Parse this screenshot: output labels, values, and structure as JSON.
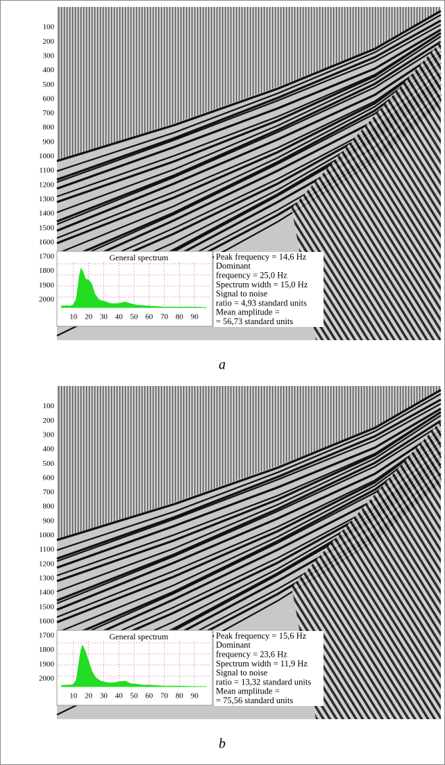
{
  "chart_data": [
    {
      "type": "area",
      "title": "General spectrum",
      "x": [
        2,
        5,
        8,
        10,
        12,
        14,
        15,
        16,
        18,
        20,
        22,
        24,
        26,
        28,
        30,
        33,
        36,
        40,
        44,
        46,
        48,
        52,
        56,
        60,
        65,
        70,
        80,
        90,
        98
      ],
      "values": [
        3,
        4,
        3,
        6,
        20,
        70,
        85,
        80,
        62,
        60,
        52,
        30,
        20,
        15,
        14,
        10,
        8,
        9,
        12,
        10,
        8,
        5,
        4,
        3,
        2,
        1,
        1,
        1,
        0
      ],
      "color": "#22dd22",
      "xlim": [
        0,
        100
      ],
      "xticks": [
        10,
        20,
        30,
        40,
        50,
        60,
        70,
        80,
        90
      ],
      "ylim": [
        0,
        100
      ],
      "grid": true,
      "section_ylim": [
        0,
        2000
      ],
      "section_yticks": [
        100,
        200,
        300,
        400,
        500,
        600,
        700,
        800,
        900,
        1000,
        1100,
        1200,
        1300,
        1400,
        1500,
        1600,
        1700,
        1800,
        1900,
        2000
      ],
      "annotations": [
        "Peak frequency = 14,6 Hz",
        "Dominant",
        "frequency = 25,0 Hz",
        "Spectrum width = 15,0 Hz",
        "Signal to noise",
        "ratio = 4,93 standard units",
        "Mean amplitude =",
        "= 56,73 standard units"
      ],
      "caption": "a"
    },
    {
      "type": "area",
      "title": "General spectrum",
      "x": [
        2,
        5,
        8,
        10,
        12,
        14,
        15,
        16,
        18,
        20,
        22,
        24,
        26,
        28,
        30,
        33,
        36,
        40,
        44,
        46,
        48,
        52,
        56,
        60,
        65,
        70,
        80,
        90,
        98
      ],
      "values": [
        2,
        3,
        3,
        5,
        15,
        60,
        80,
        90,
        75,
        55,
        35,
        22,
        16,
        12,
        10,
        8,
        8,
        10,
        12,
        9,
        6,
        5,
        3,
        3,
        2,
        1,
        1,
        0,
        0
      ],
      "color": "#22dd22",
      "xlim": [
        0,
        100
      ],
      "xticks": [
        10,
        20,
        30,
        40,
        50,
        60,
        70,
        80,
        90
      ],
      "ylim": [
        0,
        100
      ],
      "grid": true,
      "section_ylim": [
        0,
        2000
      ],
      "section_yticks": [
        100,
        200,
        300,
        400,
        500,
        600,
        700,
        800,
        900,
        1000,
        1100,
        1200,
        1300,
        1400,
        1500,
        1600,
        1700,
        1800,
        1900,
        2000
      ],
      "annotations": [
        "Peak frequency = 15,6 Hz",
        "Dominant",
        "frequency = 23,6 Hz",
        "Spectrum width = 11,9 Hz",
        "Signal to noise",
        "ratio = 13,32 standard units",
        "Mean amplitude =",
        "=  75,56 standard units"
      ],
      "caption": "b"
    }
  ]
}
